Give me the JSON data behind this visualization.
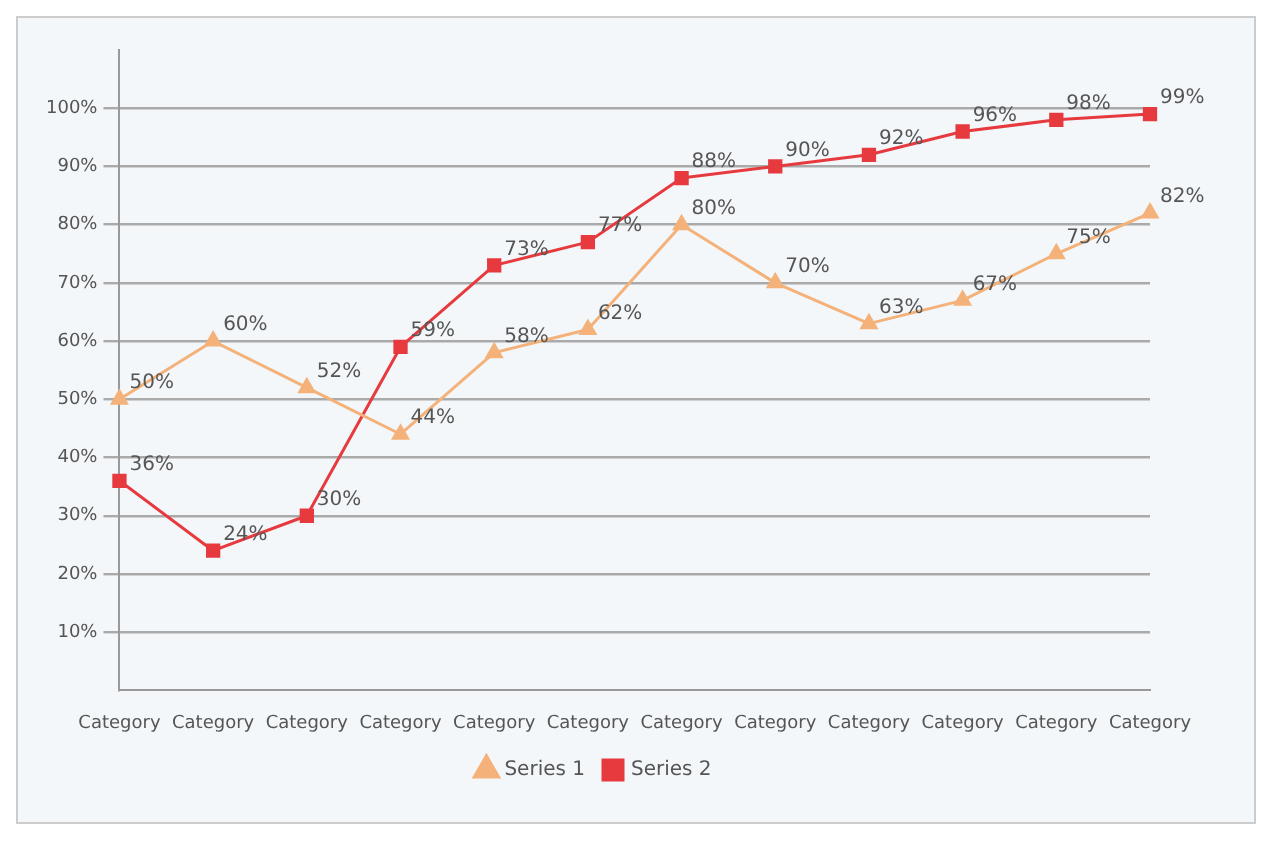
{
  "chart_data": {
    "type": "line",
    "categories": [
      "Category",
      "Category",
      "Category",
      "Category",
      "Category",
      "Category",
      "Category",
      "Category",
      "Category",
      "Category",
      "Category",
      "Category"
    ],
    "series": [
      {
        "name": "Series 1",
        "color": "#f4b27a",
        "marker": "triangle",
        "values": [
          50,
          60,
          52,
          44,
          58,
          62,
          80,
          70,
          63,
          67,
          75,
          82
        ],
        "value_labels": [
          "50%",
          "60%",
          "52%",
          "44%",
          "58%",
          "62%",
          "80%",
          "70%",
          "63%",
          "67%",
          "75%",
          "82%"
        ]
      },
      {
        "name": "Series 2",
        "color": "#e63a3f",
        "marker": "square",
        "values": [
          36,
          24,
          30,
          59,
          73,
          77,
          88,
          90,
          92,
          96,
          98,
          99
        ],
        "value_labels": [
          "36%",
          "24%",
          "30%",
          "59%",
          "73%",
          "77%",
          "88%",
          "90%",
          "92%",
          "96%",
          "98%",
          "99%"
        ]
      }
    ],
    "ylim": [
      0,
      110
    ],
    "yticks": [
      {
        "value": 10,
        "label": "10%"
      },
      {
        "value": 20,
        "label": "20%"
      },
      {
        "value": 30,
        "label": "30%"
      },
      {
        "value": 40,
        "label": "40%"
      },
      {
        "value": 50,
        "label": "50%"
      },
      {
        "value": 60,
        "label": "60%"
      },
      {
        "value": 70,
        "label": "70%"
      },
      {
        "value": 80,
        "label": "80%"
      },
      {
        "value": 90,
        "label": "90%"
      },
      {
        "value": 100,
        "label": "100%"
      }
    ],
    "grid": "y",
    "legend": "bottom"
  }
}
